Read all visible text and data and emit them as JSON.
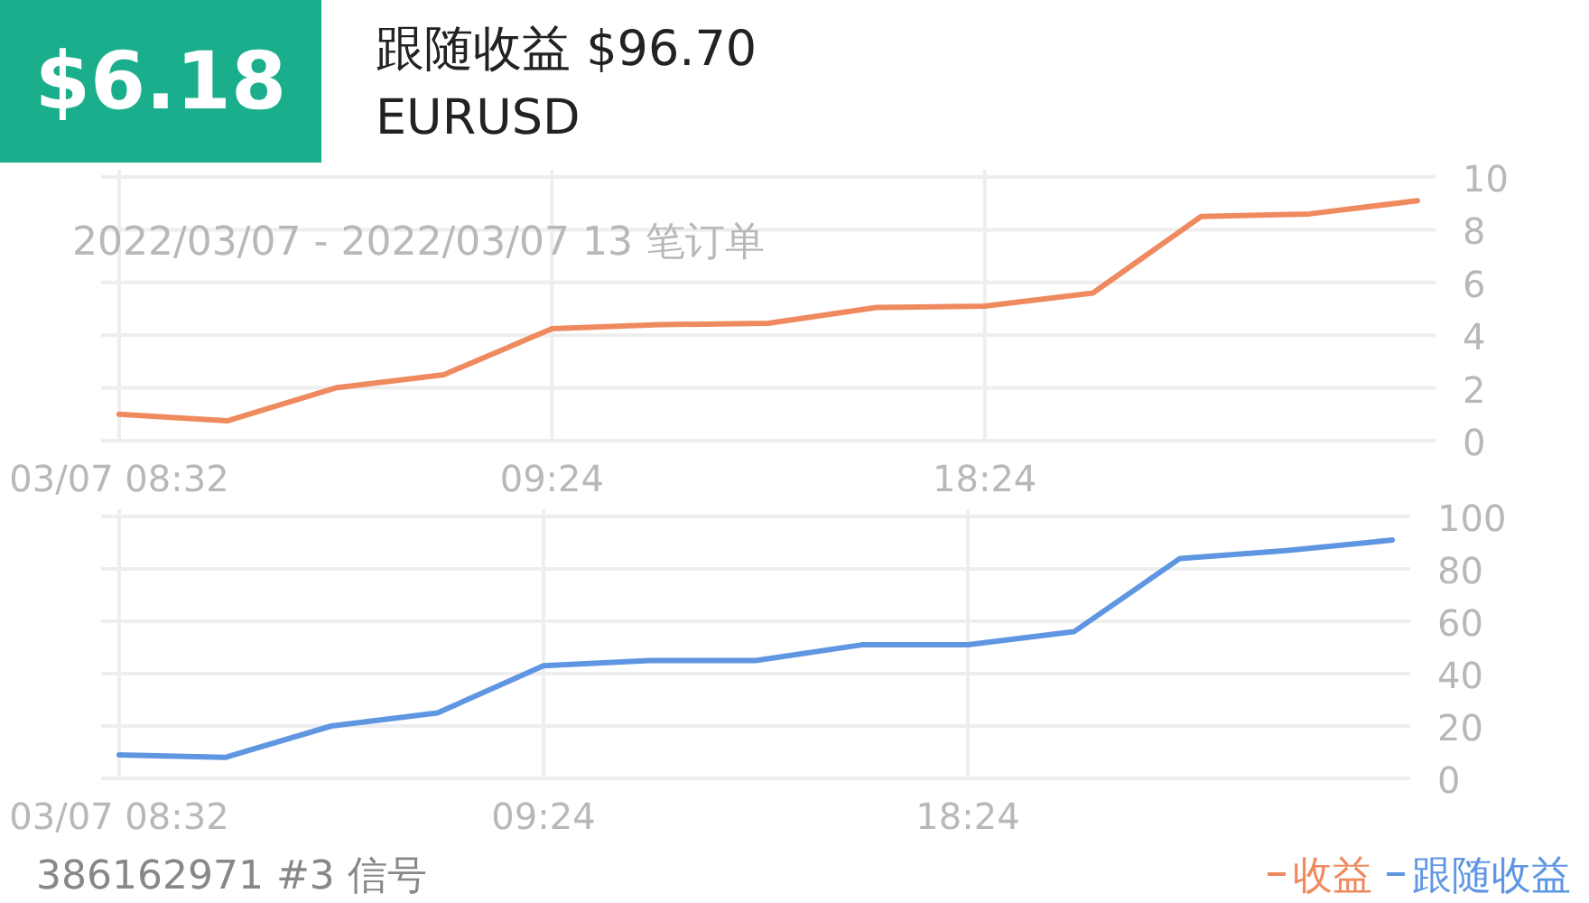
{
  "chart_data": [
    {
      "type": "line",
      "title": "跟随收益 $96.70",
      "subtitle": "EURUSD",
      "annotations": [
        "$6.18",
        "2022/03/07 - 2022/03/07 13 笔订单"
      ],
      "categories": [
        "03/07 08:32",
        null,
        null,
        null,
        "09:24",
        null,
        null,
        null,
        "18:24",
        null,
        null,
        null,
        null
      ],
      "series": [
        {
          "name": "收益",
          "color": "#ef8a5f",
          "values": [
            1.0,
            0.75,
            2.0,
            2.5,
            4.25,
            4.4,
            4.45,
            5.05,
            5.1,
            5.6,
            8.5,
            8.6,
            9.1
          ]
        }
      ],
      "ylim": [
        0,
        10
      ],
      "yticks": [
        0,
        2,
        4,
        6,
        8,
        10
      ],
      "grid": true,
      "legend": "bottom right"
    },
    {
      "type": "line",
      "annotations": [
        "386162971 #3 信号"
      ],
      "categories": [
        "03/07 08:32",
        null,
        null,
        null,
        "09:24",
        null,
        null,
        null,
        "18:24",
        null,
        null,
        null,
        null
      ],
      "series": [
        {
          "name": "跟随收益",
          "color": "#5f96e2",
          "values": [
            9,
            8,
            20,
            25,
            43,
            45,
            45,
            51,
            51,
            56,
            84,
            87,
            91
          ]
        }
      ],
      "ylim": [
        0,
        100
      ],
      "yticks": [
        0,
        20,
        40,
        60,
        80,
        100
      ],
      "grid": true,
      "legend": "bottom right"
    }
  ]
}
